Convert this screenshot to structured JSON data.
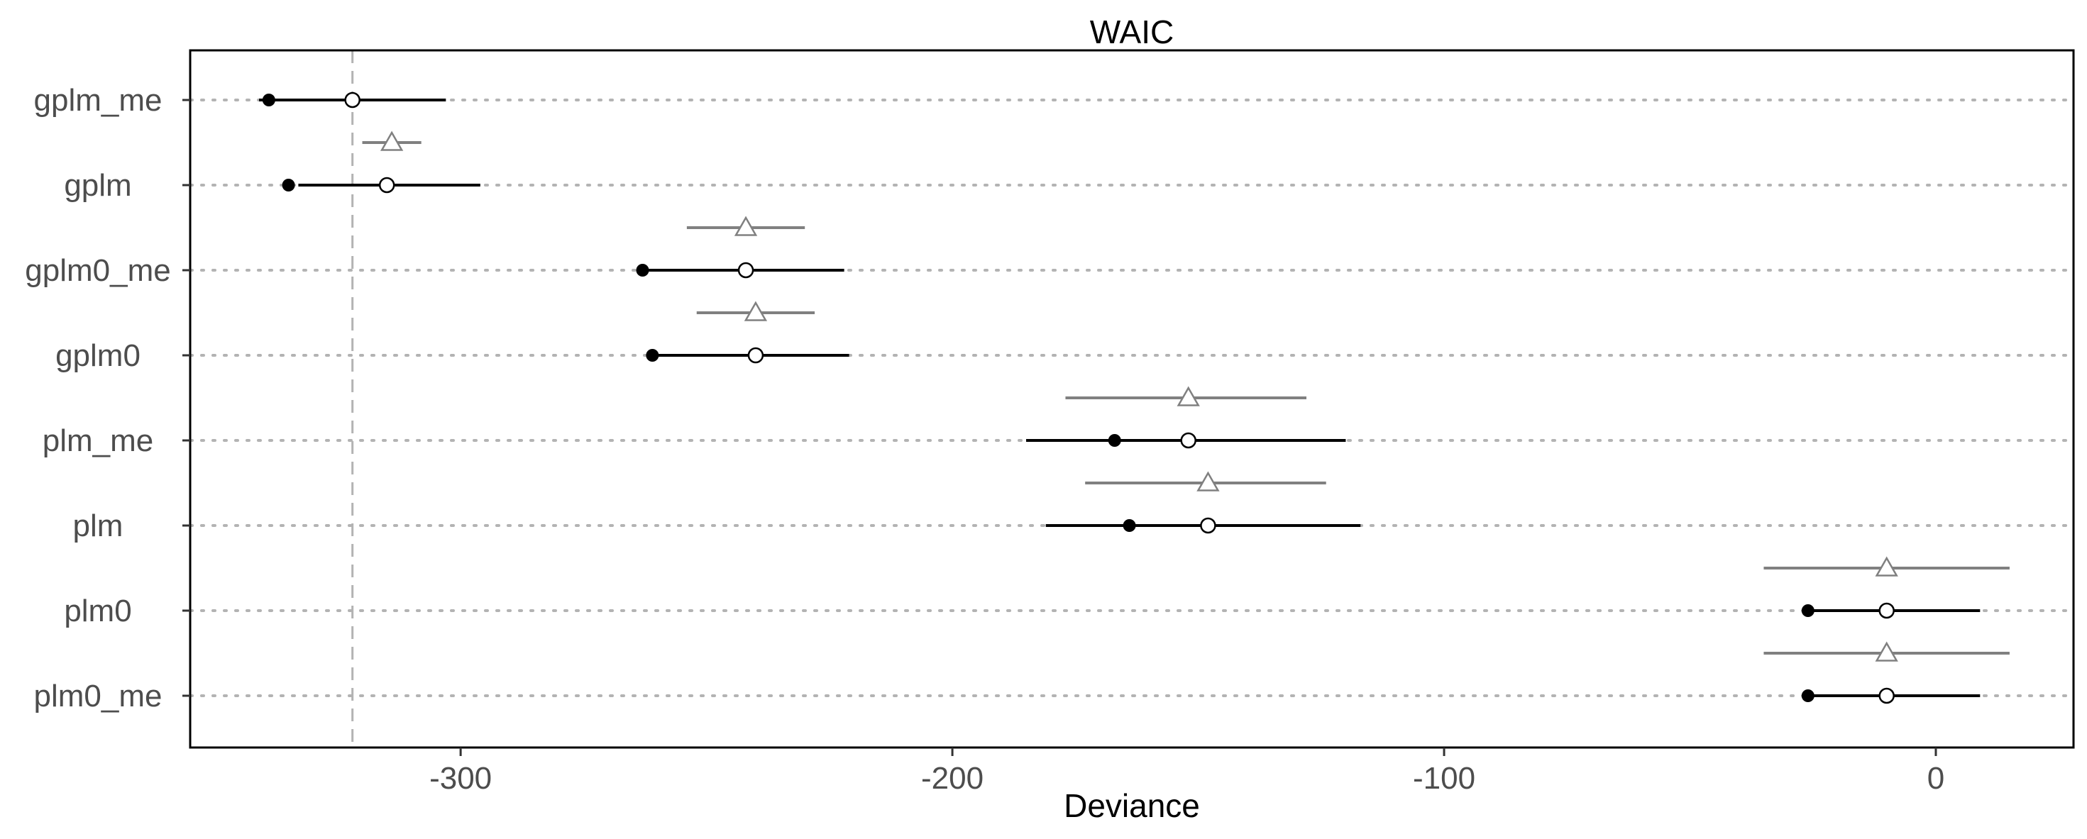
{
  "chart_data": {
    "type": "scatter",
    "title": "WAIC",
    "xlabel": "Deviance",
    "ylabel": "",
    "xlim": [
      -355,
      28
    ],
    "xticks": [
      -300,
      -200,
      -100,
      0
    ],
    "xtick_labels": [
      "-300",
      "-200",
      "-100",
      "0"
    ],
    "reference_line": -322,
    "models": [
      {
        "name": "gplm_me",
        "deviance": -339,
        "waic": -322,
        "waic_lo": -341,
        "waic_hi": -303,
        "diff": -314,
        "diff_lo": -320,
        "diff_hi": -308
      },
      {
        "name": "gplm",
        "deviance": -335,
        "waic": -315,
        "waic_lo": -333,
        "waic_hi": -296,
        "diff": -242,
        "diff_lo": -254,
        "diff_hi": -230
      },
      {
        "name": "gplm0_me",
        "deviance": -263,
        "waic": -242,
        "waic_lo": -263,
        "waic_hi": -222,
        "diff": -240,
        "diff_lo": -252,
        "diff_hi": -228
      },
      {
        "name": "gplm0",
        "deviance": -261,
        "waic": -240,
        "waic_lo": -261,
        "waic_hi": -221,
        "diff": -152,
        "diff_lo": -177,
        "diff_hi": -128
      },
      {
        "name": "plm_me",
        "deviance": -167,
        "waic": -152,
        "waic_lo": -185,
        "waic_hi": -120,
        "diff": -148,
        "diff_lo": -173,
        "diff_hi": -124
      },
      {
        "name": "plm",
        "deviance": -164,
        "waic": -148,
        "waic_lo": -181,
        "waic_hi": -117,
        "diff": -10,
        "diff_lo": -35,
        "diff_hi": 15
      },
      {
        "name": "plm0",
        "deviance": -26,
        "waic": -10,
        "waic_lo": -27,
        "waic_hi": 9,
        "diff": -10,
        "diff_lo": -35,
        "diff_hi": 15
      },
      {
        "name": "plm0_me",
        "deviance": -26,
        "waic": -10,
        "waic_lo": -27,
        "waic_hi": 9,
        "diff": null,
        "diff_lo": null,
        "diff_hi": null
      }
    ],
    "colors": {
      "main": "#000000",
      "diff": "#808080",
      "grid": "#b3b3b3",
      "refline": "#b3b3b3"
    }
  }
}
